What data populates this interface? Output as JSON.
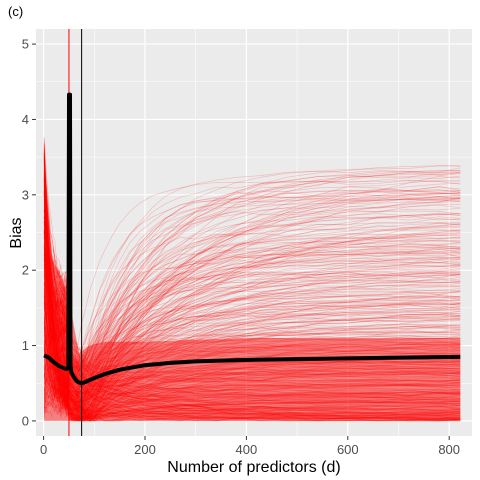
{
  "chart_data": {
    "type": "line",
    "panel_tag": "(c)",
    "xlabel": "Number of predictors (d)",
    "ylabel": "Bias",
    "xlim": [
      -15,
      845
    ],
    "ylim": [
      -0.2,
      5.2
    ],
    "x_ticks": [
      0,
      200,
      400,
      600,
      800
    ],
    "y_ticks": [
      0,
      1,
      2,
      3,
      4,
      5
    ],
    "grid": true,
    "background_color": "#ebebeb",
    "grid_color": "#ffffff",
    "series": [
      {
        "style": "many-thin-translucent",
        "color": "#ff0000",
        "x_range": [
          1,
          822
        ],
        "y_range": [
          0,
          3.9
        ],
        "approx_count": 1000
      },
      {
        "style": "thick-mean-line",
        "color": "#000000",
        "x": [
          1,
          10,
          20,
          30,
          40,
          45,
          49,
          50,
          52,
          53,
          55,
          60,
          65,
          70,
          75,
          80,
          90,
          100,
          120,
          150,
          200,
          250,
          300,
          400,
          500,
          600,
          700,
          822
        ],
        "y": [
          0.87,
          0.84,
          0.78,
          0.73,
          0.7,
          0.69,
          0.7,
          4.33,
          4.33,
          0.72,
          0.64,
          0.58,
          0.53,
          0.51,
          0.5,
          0.51,
          0.54,
          0.57,
          0.62,
          0.68,
          0.74,
          0.77,
          0.79,
          0.81,
          0.82,
          0.83,
          0.84,
          0.85
        ]
      }
    ],
    "vlines": [
      {
        "x": 50,
        "color": "#ff0000"
      },
      {
        "x": 75,
        "color": "#000000"
      }
    ]
  }
}
